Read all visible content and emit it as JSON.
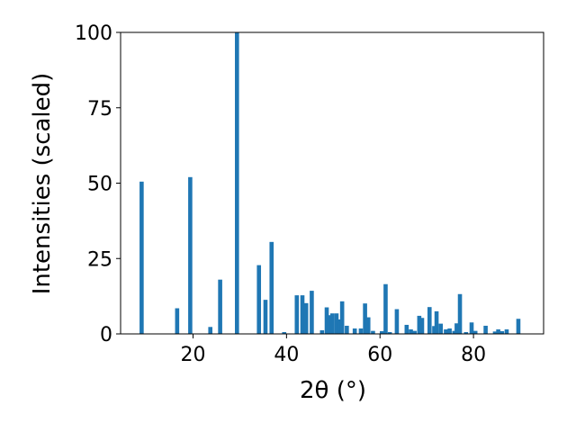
{
  "chart_data": {
    "type": "bar",
    "xlabel": "2θ (°)",
    "ylabel": "Intensities (scaled)",
    "xlim": [
      4.5,
      95
    ],
    "ylim": [
      0,
      100
    ],
    "xticks": [
      20,
      40,
      60,
      80
    ],
    "yticks": [
      0,
      25,
      50,
      75,
      100
    ],
    "grid": false,
    "bar_color": "#1f77b4",
    "x": [
      9.0,
      16.6,
      19.4,
      23.7,
      25.8,
      29.4,
      34.1,
      35.5,
      36.8,
      39.5,
      42.2,
      43.4,
      44.2,
      45.4,
      47.6,
      48.6,
      49.1,
      49.8,
      50.7,
      51.3,
      51.9,
      52.9,
      54.6,
      55.9,
      56.8,
      57.5,
      58.5,
      60.4,
      61.2,
      62.1,
      63.6,
      65.7,
      66.6,
      67.4,
      68.4,
      69.0,
      70.6,
      71.6,
      72.1,
      73.0,
      74.1,
      74.9,
      75.9,
      76.4,
      77.1,
      78.4,
      79.6,
      80.4,
      82.6,
      84.6,
      85.3,
      86.1,
      87.1,
      89.6
    ],
    "values": [
      50.5,
      8.5,
      52.0,
      2.3,
      18.0,
      100.0,
      22.8,
      11.3,
      30.5,
      0.6,
      12.8,
      12.8,
      10.2,
      14.3,
      1.2,
      8.8,
      6.2,
      6.8,
      6.8,
      4.8,
      10.8,
      2.7,
      1.8,
      1.8,
      10.1,
      5.5,
      1.0,
      0.9,
      16.5,
      0.6,
      8.2,
      3.0,
      1.5,
      1.0,
      6.0,
      5.3,
      8.9,
      2.6,
      7.5,
      3.4,
      1.5,
      1.8,
      1.0,
      3.5,
      13.2,
      0.6,
      3.8,
      1.0,
      2.7,
      0.8,
      1.5,
      0.9,
      1.5,
      5.0
    ]
  }
}
